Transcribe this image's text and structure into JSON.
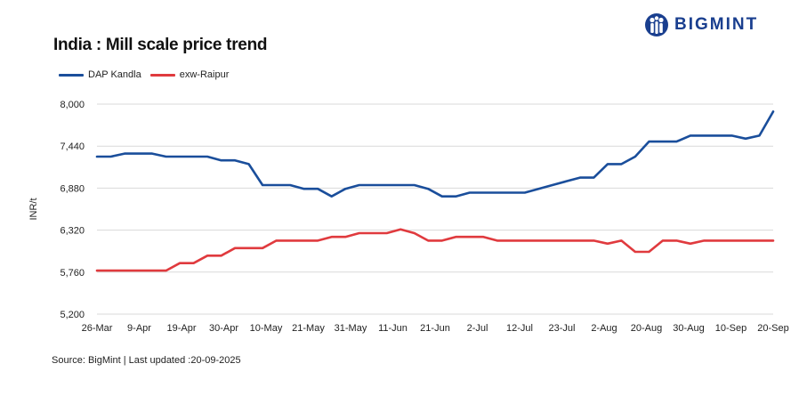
{
  "header": {
    "title": "India : Mill scale price trend",
    "brand": "BIGMINT",
    "brand_icon": "people-icon"
  },
  "source": "Source: BigMint | Last updated :20-09-2025",
  "colors": {
    "dap": "#1a4e9b",
    "raipur": "#e03a3e",
    "grid": "#d9d9d9",
    "brand": "#1a3f8f"
  },
  "chart_data": {
    "type": "line",
    "title": "India : Mill scale price trend",
    "xlabel": "",
    "ylabel": "INR/t",
    "ylim": [
      5200,
      8000
    ],
    "yticks": [
      "8,000",
      "7,440",
      "6,880",
      "6,320",
      "5,760",
      "5,200"
    ],
    "ytick_values": [
      8000,
      7440,
      6880,
      6320,
      5760,
      5200
    ],
    "xtick_labels": [
      "26-Mar",
      "9-Apr",
      "19-Apr",
      "30-Apr",
      "10-May",
      "21-May",
      "31-May",
      "11-Jun",
      "21-Jun",
      "2-Jul",
      "12-Jul",
      "23-Jul",
      "2-Aug",
      "20-Aug",
      "30-Aug",
      "10-Sep",
      "20-Sep"
    ],
    "grid": true,
    "legend": "top-left",
    "series": [
      {
        "name": "DAP Kandla",
        "values": [
          7300,
          7300,
          7340,
          7340,
          7340,
          7300,
          7300,
          7300,
          7300,
          7250,
          7250,
          7200,
          6920,
          6920,
          6920,
          6870,
          6870,
          6770,
          6870,
          6920,
          6920,
          6920,
          6920,
          6920,
          6870,
          6770,
          6770,
          6820,
          6820,
          6820,
          6820,
          6820,
          6870,
          6920,
          6970,
          7020,
          7020,
          7200,
          7200,
          7300,
          7500,
          7500,
          7500,
          7580,
          7580,
          7580,
          7580,
          7540,
          7580,
          7900
        ]
      },
      {
        "name": "exw-Raipur",
        "values": [
          5780,
          5780,
          5780,
          5780,
          5780,
          5780,
          5880,
          5880,
          5980,
          5980,
          6080,
          6080,
          6080,
          6180,
          6180,
          6180,
          6180,
          6230,
          6230,
          6280,
          6280,
          6280,
          6330,
          6280,
          6180,
          6180,
          6230,
          6230,
          6230,
          6180,
          6180,
          6180,
          6180,
          6180,
          6180,
          6180,
          6180,
          6140,
          6180,
          6030,
          6030,
          6180,
          6180,
          6140,
          6180,
          6180,
          6180,
          6180,
          6180,
          6180
        ]
      }
    ]
  }
}
